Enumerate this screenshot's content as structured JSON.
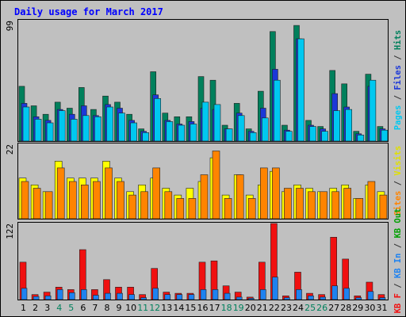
{
  "chart_data": {
    "type": "bar",
    "title": "Daily usage for March 2017",
    "categories": [
      "1",
      "2",
      "3",
      "4",
      "5",
      "6",
      "7",
      "8",
      "9",
      "10",
      "11",
      "12",
      "13",
      "14",
      "15",
      "16",
      "17",
      "18",
      "19",
      "20",
      "21",
      "22",
      "23",
      "24",
      "25",
      "26",
      "27",
      "28",
      "29",
      "30",
      "31"
    ],
    "weekend_days": [
      4,
      5,
      11,
      12,
      18,
      19,
      25,
      26
    ],
    "panels": [
      {
        "id": "hits",
        "ymax_label": "99",
        "ylim": [
          0,
          99
        ],
        "series": [
          {
            "name": "Hits",
            "color": "#00805C",
            "values": [
              45,
              29,
              22,
              32,
              27,
              44,
              26,
              37,
              32,
              22,
              10,
              57,
              23,
              20,
              20,
              53,
              50,
              13,
              31,
              10,
              41,
              90,
              13,
              95,
              17,
              12,
              58,
              47,
              8,
              55,
              12
            ]
          },
          {
            "name": "Files",
            "color": "#1C38D8",
            "values": [
              31,
              20,
              17,
              26,
              22,
              29,
              21,
              30,
              27,
              17,
              8,
              38,
              17,
              14,
              16,
              27,
              26,
              10,
              23,
              8,
              27,
              59,
              9,
              84,
              13,
              10,
              39,
              28,
              6,
              45,
              10
            ]
          },
          {
            "name": "Pages",
            "color": "#00C8F0",
            "values": [
              28,
              18,
              15,
              25,
              18,
              21,
              20,
              28,
              23,
              15,
              7,
              35,
              16,
              13,
              14,
              32,
              30,
              10,
              21,
              7,
              19,
              50,
              8,
              84,
              12,
              8,
              25,
              26,
              5,
              50,
              9
            ]
          }
        ]
      },
      {
        "id": "visits",
        "ymax_label": "22",
        "ylim": [
          0,
          22
        ],
        "series": [
          {
            "name": "Visits",
            "color": "#FFFF00",
            "values": [
              12,
              10,
              8,
              17,
              12,
              12,
              12,
              17,
              12,
              8,
              10,
              12,
              9,
              7,
              9,
              11,
              18,
              7,
              13,
              7,
              10,
              14,
              8,
              10,
              9,
              8,
              9,
              10,
              6,
              10,
              8
            ]
          },
          {
            "name": "Sites",
            "color": "#FF8400",
            "values": [
              11,
              9,
              8,
              15,
              11,
              10,
              11,
              15,
              11,
              7,
              8,
              15,
              8,
              6,
              6,
              13,
              20,
              6,
              13,
              6,
              15,
              15,
              9,
              9,
              8,
              8,
              8,
              9,
              6,
              11,
              7
            ]
          }
        ]
      },
      {
        "id": "kbytes",
        "ymax_label": "122",
        "ylim": [
          0,
          122
        ],
        "series": [
          {
            "name": "KB F",
            "color": "#F01010",
            "values": [
              60,
              8,
              12,
              20,
              16,
              80,
              16,
              32,
              20,
              20,
              8,
              50,
              12,
              10,
              10,
              60,
              62,
              22,
              12,
              4,
              60,
              122,
              6,
              44,
              10,
              8,
              100,
              65,
              6,
              28,
              8
            ]
          },
          {
            "name": "KB In",
            "color": "#1E82F0",
            "values": [
              18,
              5,
              6,
              16,
              11,
              16,
              7,
              10,
              10,
              8,
              3,
              18,
              8,
              8,
              8,
              16,
              16,
              10,
              4,
              2,
              16,
              36,
              3,
              16,
              6,
              4,
              22,
              18,
              3,
              13,
              3
            ]
          }
        ]
      }
    ],
    "side_labels": [
      {
        "parts": [
          {
            "text": "Pages",
            "color": "#00C8F0"
          },
          {
            "text": " / ",
            "color": "#333333"
          },
          {
            "text": "Files",
            "color": "#1C38D8"
          },
          {
            "text": " / ",
            "color": "#333333"
          },
          {
            "text": "Hits",
            "color": "#00805C"
          }
        ]
      },
      {
        "parts": [
          {
            "text": "Sites",
            "color": "#FF8400"
          },
          {
            "text": " / ",
            "color": "#333333"
          },
          {
            "text": "Visits",
            "color": "#E0E000"
          }
        ]
      },
      {
        "parts": [
          {
            "text": "KB F",
            "color": "#F01010"
          },
          {
            "text": " / ",
            "color": "#333333"
          },
          {
            "text": "KB In",
            "color": "#1E82F0"
          },
          {
            "text": " / ",
            "color": "#333333"
          },
          {
            "text": "KB Out",
            "color": "#00A000"
          }
        ]
      }
    ],
    "colors": {
      "background": "#C0C0C0",
      "title": "#0000FF",
      "weekday_label": "#000000",
      "weekend_label": "#00805C"
    }
  }
}
